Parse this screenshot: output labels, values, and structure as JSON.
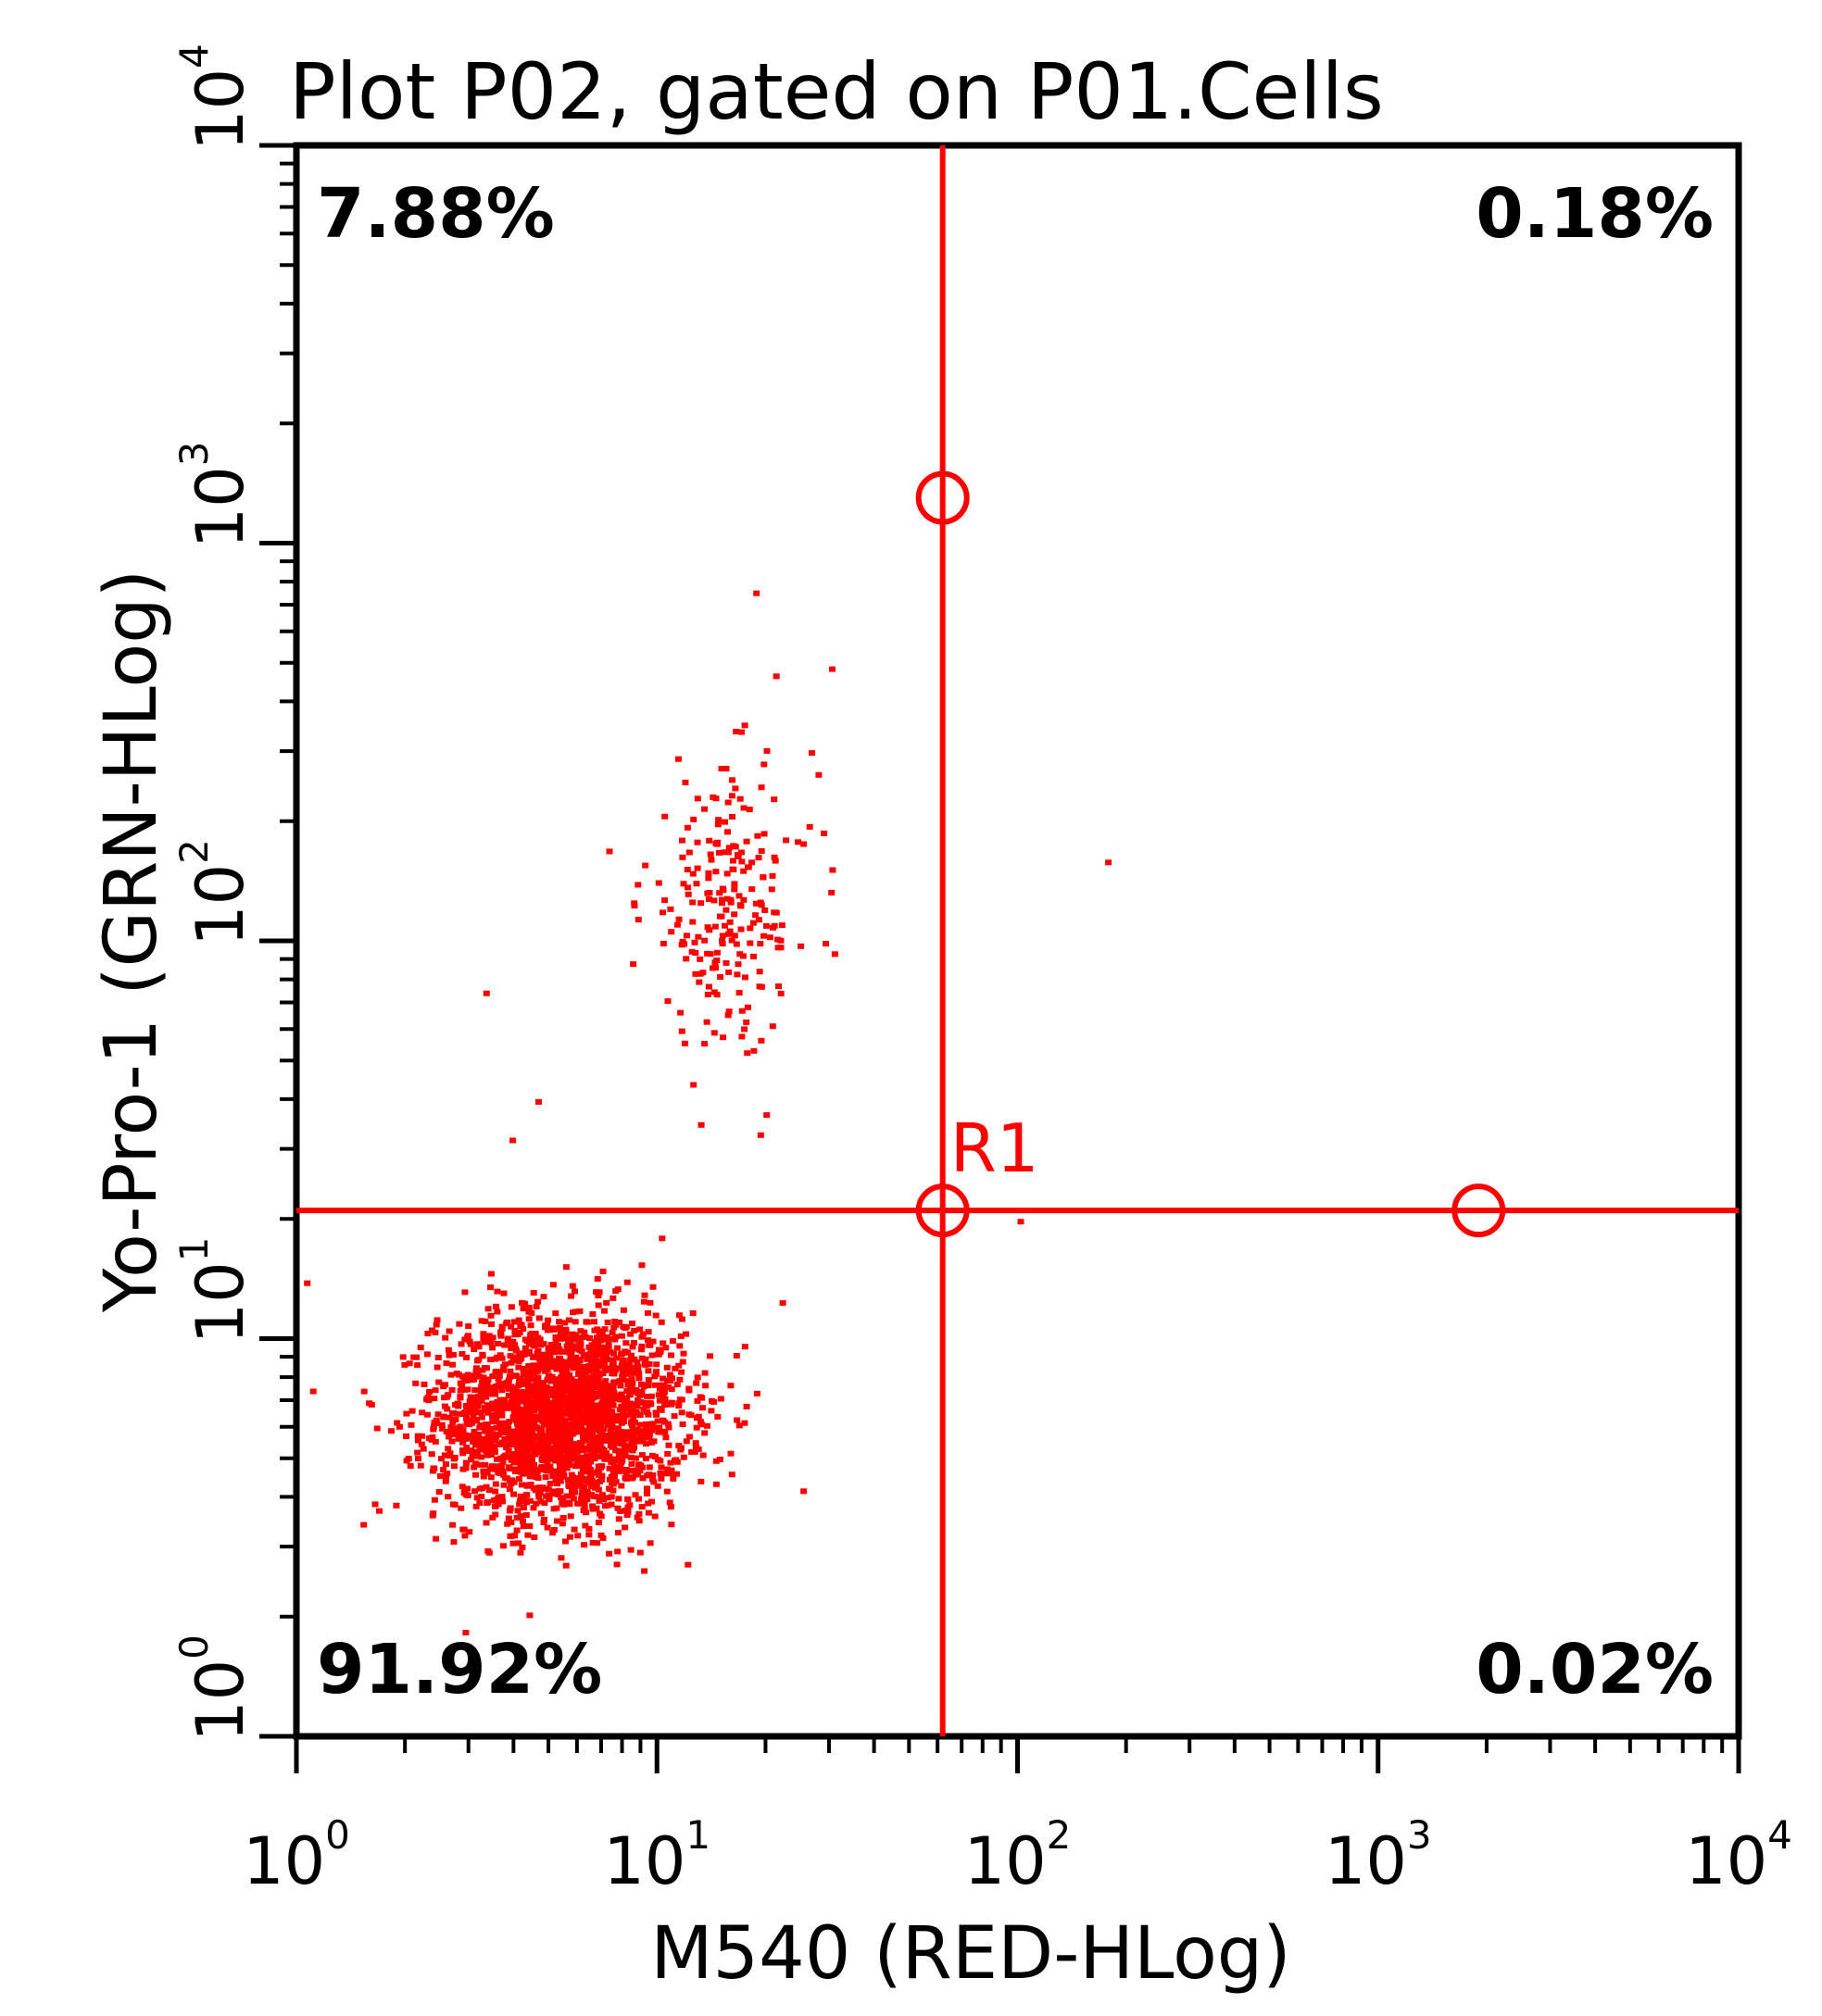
{
  "chart_data": {
    "type": "scatter",
    "title": "Plot P02, gated on P01.Cells",
    "xlabel": "M540 (RED-HLog)",
    "ylabel": "Yo-Pro-1 (GRN-HLog)",
    "xscale": "log",
    "yscale": "log",
    "xlim": [
      1,
      10000
    ],
    "ylim": [
      1,
      10000
    ],
    "x_ticks": [
      {
        "value": 1,
        "base": "10",
        "exp": "0"
      },
      {
        "value": 10,
        "base": "10",
        "exp": "1"
      },
      {
        "value": 100,
        "base": "10",
        "exp": "2"
      },
      {
        "value": 1000,
        "base": "10",
        "exp": "3"
      },
      {
        "value": 10000,
        "base": "10",
        "exp": "4"
      }
    ],
    "y_ticks": [
      {
        "value": 1,
        "base": "10",
        "exp": "0"
      },
      {
        "value": 10,
        "base": "10",
        "exp": "1"
      },
      {
        "value": 100,
        "base": "10",
        "exp": "2"
      },
      {
        "value": 1000,
        "base": "10",
        "exp": "3"
      },
      {
        "value": 10000,
        "base": "10",
        "exp": "4"
      }
    ],
    "marker_color": "#ff0000",
    "quadrant_gate": {
      "name": "R1",
      "x": 62,
      "y": 21,
      "handles": [
        {
          "x": 62,
          "y": 1300
        },
        {
          "x": 62,
          "y": 21
        },
        {
          "x": 1900,
          "y": 21
        }
      ],
      "color": "#ff0000"
    },
    "quadrant_stats": {
      "upper_left": "7.88%",
      "upper_right": "0.18%",
      "lower_left": "91.92%",
      "lower_right": "0.02%"
    },
    "populations": [
      {
        "name": "",
        "center": [
          5.3,
          6.5
        ],
        "spread_log10": [
          0.17,
          0.13
        ],
        "count": 2600
      },
      {
        "name": "",
        "center": [
          15.5,
          125
        ],
        "spread_log10": [
          0.12,
          0.17
        ],
        "count": 230
      }
    ],
    "outliers": [
      {
        "x": 18.5,
        "y": 760
      },
      {
        "x": 30,
        "y": 490
      },
      {
        "x": 21,
        "y": 470
      },
      {
        "x": 175,
        "y": 160
      },
      {
        "x": 3.3,
        "y": 75
      },
      {
        "x": 13,
        "y": 35
      },
      {
        "x": 19,
        "y": 33
      },
      {
        "x": 100,
        "y": 20
      },
      {
        "x": 1.05,
        "y": 14
      },
      {
        "x": 25,
        "y": 4.2
      },
      {
        "x": 4.6,
        "y": 40
      },
      {
        "x": 3.9,
        "y": 32
      }
    ]
  }
}
